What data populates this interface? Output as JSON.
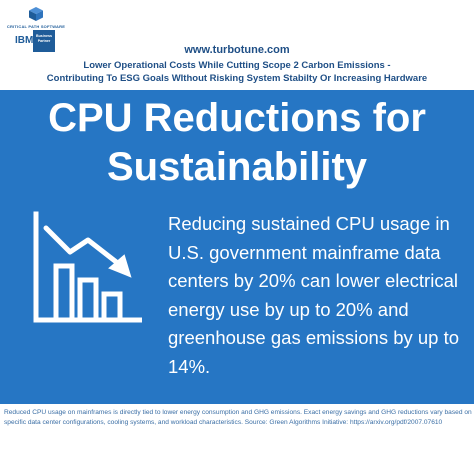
{
  "header": {
    "company_name": "CRITICAL PATH SOFTWARE",
    "ibm_logo": "IBM",
    "ibm_badge": "Business Partner",
    "url": "www.turbotune.com",
    "tagline_line1": "Lower Operational Costs While Cutting Scope 2 Carbon Emissions -",
    "tagline_line2": "Contributing To ESG Goals WIthout Risking System Stabilty Or Increasing Hardware"
  },
  "main": {
    "title_line1": "CPU Reductions for",
    "title_line2": "Sustainability",
    "body": "Reducing sustained CPU usage in U.S. government mainframe data centers by 20% can lower electrical energy use by up to 20% and greenhouse gas emissions by up to 14%.",
    "icon": "declining-bar-chart-icon"
  },
  "footer": {
    "note": "Reduced CPU usage on mainframes is directly tied to lower energy consumption and GHG emissions. Exact energy savings and GHG reductions vary based on specific data center configurations, cooling systems, and workload characteristics. Source: Green Algorithms Initiative: https://arxiv.org/pdf/2007.07610"
  },
  "colors": {
    "panel": "#2676c4",
    "header_text": "#1f4f86",
    "footer_text": "#3a6ea5"
  }
}
